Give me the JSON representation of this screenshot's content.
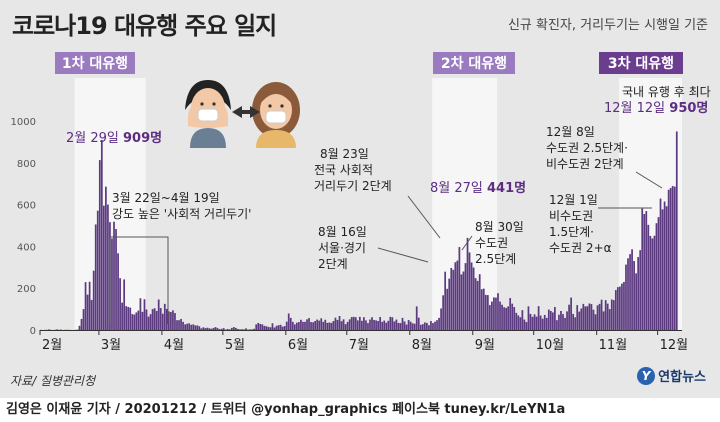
{
  "header": {
    "title": "코로나19 대유행 주요 일지",
    "subtitle": "신규 확진자, 거리두기는 시행일 기준"
  },
  "footer": {
    "source": "자료/ 질병관리청",
    "logo": "연합뉴스",
    "logo_mark": "Y",
    "credit": "김영은 이재윤 기자 / 20201212 / 트위터 @yonhap_graphics  페이스북 tuney.kr/LeYN1a"
  },
  "colors": {
    "bar": "#5c3a80",
    "wave1": "#9b7bbf",
    "wave2": "#9b7bbf",
    "wave3": "#6b3d8f",
    "annotation": "#5c2d82"
  },
  "chart_data": {
    "type": "bar",
    "x_start": "2020-02-01",
    "x_end": "2020-12-12",
    "ylim": [
      0,
      1000
    ],
    "yticks": [
      0,
      200,
      400,
      600,
      800,
      1000
    ],
    "month_labels": [
      "2월",
      "3월",
      "4월",
      "5월",
      "6월",
      "7월",
      "8월",
      "9월",
      "10월",
      "11월",
      "12월"
    ],
    "values": [
      1,
      0,
      1,
      1,
      3,
      1,
      0,
      1,
      3,
      1,
      2,
      0,
      1,
      1,
      1,
      0,
      0,
      1,
      2,
      20,
      53,
      100,
      229,
      169,
      231,
      144,
      284,
      505,
      571,
      813,
      909,
      595,
      686,
      600,
      516,
      438,
      518,
      483,
      367,
      248,
      131,
      242,
      114,
      110,
      107,
      76,
      74,
      84,
      93,
      152,
      87,
      147,
      98,
      64,
      76,
      100,
      104,
      91,
      146,
      105,
      78,
      125,
      101,
      89,
      86,
      94,
      81,
      47,
      47,
      53,
      39,
      27,
      30,
      32,
      25,
      27,
      22,
      22,
      18,
      8,
      13,
      9,
      11,
      8,
      6,
      10,
      14,
      9,
      4,
      6,
      9,
      2,
      5,
      3,
      10,
      14,
      10,
      5,
      3,
      4,
      3,
      8,
      2,
      3,
      3,
      6,
      27,
      34,
      29,
      27,
      20,
      18,
      15,
      13,
      32,
      12,
      20,
      23,
      25,
      16,
      19,
      40,
      79,
      58,
      39,
      27,
      35,
      38,
      49,
      39,
      39,
      51,
      57,
      38,
      37,
      43,
      50,
      45,
      56,
      39,
      49,
      34,
      36,
      34,
      43,
      59,
      48,
      67,
      42,
      51,
      28,
      39,
      51,
      62,
      63,
      61,
      46,
      63,
      44,
      61,
      46,
      33,
      50,
      61,
      48,
      46,
      43,
      62,
      39,
      45,
      35,
      44,
      63,
      61,
      41,
      50,
      34,
      33,
      58,
      41,
      26,
      48,
      40,
      32,
      30,
      113,
      59,
      25,
      28,
      36,
      34,
      23,
      43,
      33,
      40,
      47,
      58,
      103,
      166,
      279,
      197,
      246,
      297,
      288,
      324,
      332,
      397,
      266,
      280,
      320,
      441,
      371,
      323,
      299,
      248,
      235,
      267,
      195,
      198,
      168,
      167,
      119,
      136,
      156,
      155,
      176,
      136,
      121,
      109,
      106,
      113,
      153,
      126,
      110,
      82,
      70,
      61,
      95,
      50,
      38,
      113,
      77,
      63,
      75,
      64,
      114,
      69,
      54,
      72,
      58,
      98,
      91,
      84,
      110,
      47,
      73,
      91,
      76,
      58,
      89,
      121,
      155,
      77,
      61,
      119,
      88,
      103,
      125,
      113,
      114,
      127,
      124,
      97,
      75,
      118,
      125,
      145,
      89,
      143,
      126,
      100,
      146,
      143,
      191,
      205,
      208,
      222,
      230,
      313,
      343,
      363,
      386,
      330,
      271,
      349,
      382,
      581,
      555,
      569,
      503,
      450,
      438,
      451,
      511,
      540,
      629,
      577,
      615,
      592,
      671,
      680,
      689,
      686,
      950
    ]
  },
  "waves": [
    {
      "label": "1차 대유행",
      "start": "2020-02-18",
      "end": "2020-03-23"
    },
    {
      "label": "2차 대유행",
      "start": "2020-08-12",
      "end": "2020-09-12"
    },
    {
      "label": "3차 대유행",
      "start": "2020-11-12",
      "end": "2020-12-12"
    }
  ],
  "annotations": {
    "peak1": {
      "date_text": "2월 29일 ",
      "value_text": "909명"
    },
    "peak2": {
      "date_text": "8월 27일 ",
      "value_text": "441명"
    },
    "peak3_line1": "국내 유행 후 최다",
    "peak3_date": "12월 12일 ",
    "peak3_value": "950명",
    "sd1_line1": "3월 22일~4월 19일",
    "sd1_line2": "강도 높은 '사회적 거리두기'",
    "aug23_l1": "8월 23일",
    "aug23_l2": "전국 사회적",
    "aug23_l3": "거리두기 2단계",
    "aug16_l1": "8월 16일",
    "aug16_l2": "서울·경기",
    "aug16_l3": "2단계",
    "aug30_l1": "8월 30일",
    "aug30_l2": "수도권",
    "aug30_l3": "2.5단계",
    "dec8_l1": "12월 8일",
    "dec8_l2": "수도권 2.5단계·",
    "dec8_l3": "비수도권 2단계",
    "dec1_l1": "12월 1일",
    "dec1_l2": "비수도권",
    "dec1_l3": "1.5단계·",
    "dec1_l4": "수도권 2+α"
  }
}
